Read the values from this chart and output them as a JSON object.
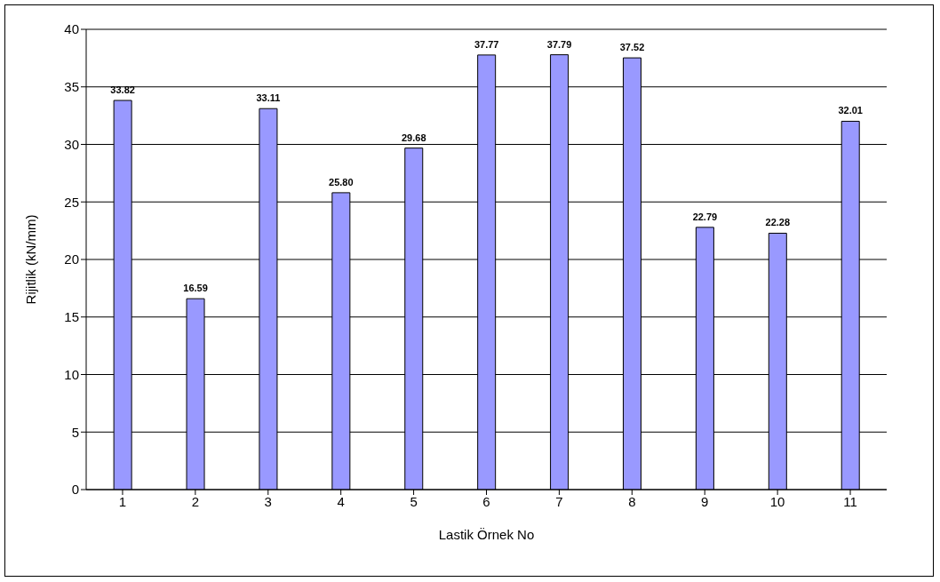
{
  "chart_data": {
    "type": "bar",
    "xlabel": "Lastik Örnek No",
    "ylabel": "Rijitlik (kN/mm)",
    "categories": [
      "1",
      "2",
      "3",
      "4",
      "5",
      "6",
      "7",
      "8",
      "9",
      "10",
      "11"
    ],
    "values": [
      33.82,
      16.59,
      33.11,
      25.8,
      29.68,
      37.77,
      37.79,
      37.52,
      22.79,
      22.28,
      32.01
    ],
    "value_labels": [
      "33.82",
      "16.59",
      "33.11",
      "25.80",
      "29.68",
      "37.77",
      "37.79",
      "37.52",
      "22.79",
      "22.28",
      "32.01"
    ],
    "color": "#9999ff",
    "ylim": [
      0,
      40
    ],
    "yticks": [
      0,
      5,
      10,
      15,
      20,
      25,
      30,
      35,
      40
    ],
    "grid": "y"
  }
}
